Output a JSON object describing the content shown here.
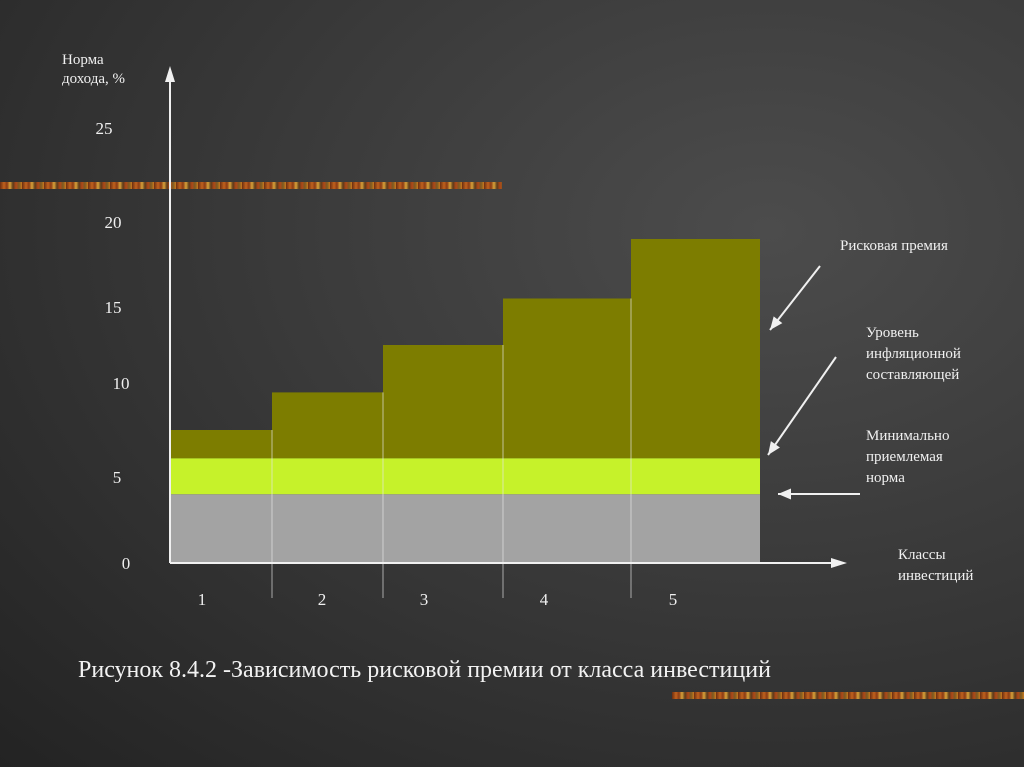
{
  "chart_data": {
    "type": "bar",
    "stacked": true,
    "title": "Рисунок 8.4.2 -Зависимость рисковой премии от класса инвестиций",
    "ylabel": "Норма\nдохода, %",
    "xlabel": "Классы\nинвестиций",
    "ylim": [
      0,
      25
    ],
    "yticks": [
      "0",
      "5",
      "10",
      "15",
      "20",
      "25"
    ],
    "categories": [
      "1",
      "2",
      "3",
      "4",
      "5"
    ],
    "series": [
      {
        "name": "Минимально приемлемая норма",
        "values": [
          4,
          4,
          4,
          4,
          4
        ],
        "color": "#a3a3a3"
      },
      {
        "name": "Уровень инфляционной составляющей",
        "values": [
          2,
          2,
          2,
          2,
          2
        ],
        "color": "#c6f22a"
      },
      {
        "name": "Рисковая премия",
        "values": [
          1.5,
          3.5,
          6.5,
          9.5,
          13
        ],
        "color": "#7d7d00"
      }
    ],
    "grid": false
  },
  "annotations": {
    "risk_premium": "Рисковая премия",
    "inflation": [
      "Уровень",
      "инфляционной",
      "составляющей"
    ],
    "min_rate": [
      "Минимально",
      "приемлемая",
      "норма"
    ]
  },
  "axis_text": {
    "y_title": [
      "Норма",
      "дохода, %"
    ],
    "x_title": [
      "Классы",
      "инвестиций"
    ]
  },
  "caption": "Рисунок 8.4.2 -Зависимость рисковой премии от класса инвестиций"
}
